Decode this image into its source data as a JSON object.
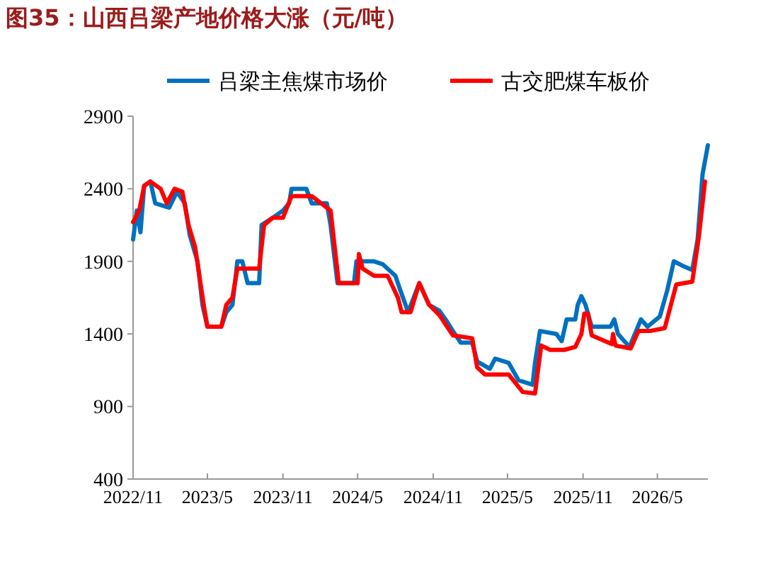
{
  "chart_data": {
    "type": "line",
    "title": "图35：山西吕梁产地价格大涨（元/吨）",
    "legend": "top",
    "grid": false,
    "xlim": [
      "2022-11-01",
      "2026-09-01"
    ],
    "xticks": [
      {
        "value": "2022-11-01",
        "label": "2022/11"
      },
      {
        "value": "2023-05-01",
        "label": "2023/5"
      },
      {
        "value": "2023-11-01",
        "label": "2023/11"
      },
      {
        "value": "2024-05-01",
        "label": "2024/5"
      },
      {
        "value": "2024-11-01",
        "label": "2024/11"
      },
      {
        "value": "2025-05-01",
        "label": "2025/5"
      },
      {
        "value": "2025-11-01",
        "label": "2025/11"
      },
      {
        "value": "2026-05-01",
        "label": "2026/5"
      }
    ],
    "ylim": [
      400,
      2900
    ],
    "yticks": [
      400,
      900,
      1400,
      1900,
      2400,
      2900
    ],
    "series": [
      {
        "name": "吕梁主焦煤市场价",
        "color": "#0070c0",
        "x": [
          "2022-11-01",
          "2022-11-10",
          "2022-11-19",
          "2022-11-28",
          "2022-12-13",
          "2022-12-25",
          "2023-01-28",
          "2023-02-16",
          "2023-03-07",
          "2023-03-19",
          "2023-04-07",
          "2023-04-19",
          "2023-05-01",
          "2023-06-04",
          "2023-06-16",
          "2023-07-01",
          "2023-07-13",
          "2023-07-25",
          "2023-08-07",
          "2023-09-04",
          "2023-09-10",
          "2023-10-07",
          "2023-11-01",
          "2023-11-16",
          "2023-11-22",
          "2023-12-28",
          "2024-01-10",
          "2024-02-16",
          "2024-02-25",
          "2024-03-13",
          "2024-04-22",
          "2024-04-28",
          "2024-06-10",
          "2024-07-01",
          "2024-08-01",
          "2024-08-13",
          "2024-09-01",
          "2024-09-28",
          "2024-10-22",
          "2024-11-16",
          "2024-12-01",
          "2024-12-19",
          "2025-01-07",
          "2025-02-04",
          "2025-02-16",
          "2025-03-19",
          "2025-04-01",
          "2025-05-04",
          "2025-05-28",
          "2025-07-01",
          "2025-07-07",
          "2025-07-19",
          "2025-08-28",
          "2025-09-10",
          "2025-09-22",
          "2025-10-13",
          "2025-10-19",
          "2025-10-28",
          "2025-11-07",
          "2025-11-22",
          "2026-01-07",
          "2026-01-16",
          "2026-01-25",
          "2026-02-22",
          "2026-03-22",
          "2026-04-07",
          "2026-05-07",
          "2026-05-25",
          "2026-06-10",
          "2026-07-01",
          "2026-07-25",
          "2026-08-07",
          "2026-08-19",
          "2026-09-01"
        ],
        "values": [
          2050,
          2250,
          2100,
          2420,
          2450,
          2300,
          2270,
          2380,
          2300,
          2080,
          1900,
          1600,
          1450,
          1450,
          1550,
          1600,
          1900,
          1900,
          1750,
          1750,
          2150,
          2200,
          2250,
          2300,
          2400,
          2400,
          2300,
          2300,
          2150,
          1750,
          1750,
          1900,
          1900,
          1880,
          1800,
          1700,
          1550,
          1750,
          1600,
          1560,
          1500,
          1420,
          1340,
          1340,
          1210,
          1160,
          1230,
          1200,
          1080,
          1050,
          1200,
          1420,
          1400,
          1350,
          1500,
          1500,
          1600,
          1660,
          1600,
          1450,
          1450,
          1500,
          1400,
          1310,
          1500,
          1450,
          1520,
          1700,
          1900,
          1870,
          1840,
          2050,
          2500,
          2700
        ]
      },
      {
        "name": "古交肥煤车板价",
        "color": "#ff0000",
        "x": [
          "2022-11-01",
          "2022-11-16",
          "2022-11-28",
          "2022-12-13",
          "2023-01-07",
          "2023-01-22",
          "2023-02-10",
          "2023-03-01",
          "2023-03-16",
          "2023-04-01",
          "2023-04-22",
          "2023-05-01",
          "2023-06-04",
          "2023-06-16",
          "2023-07-01",
          "2023-07-13",
          "2023-09-04",
          "2023-09-16",
          "2023-10-07",
          "2023-11-01",
          "2023-11-22",
          "2024-01-10",
          "2024-02-25",
          "2024-03-16",
          "2024-05-01",
          "2024-05-04",
          "2024-05-13",
          "2024-06-10",
          "2024-07-13",
          "2024-08-07",
          "2024-08-16",
          "2024-09-07",
          "2024-09-28",
          "2024-10-22",
          "2024-11-16",
          "2024-12-19",
          "2025-02-04",
          "2025-02-16",
          "2025-03-07",
          "2025-05-04",
          "2025-06-07",
          "2025-07-07",
          "2025-07-22",
          "2025-08-13",
          "2025-09-16",
          "2025-10-13",
          "2025-10-28",
          "2025-11-04",
          "2025-11-13",
          "2025-11-22",
          "2026-01-10",
          "2026-01-13",
          "2026-01-19",
          "2026-02-25",
          "2026-03-16",
          "2026-04-13",
          "2026-05-19",
          "2026-06-16",
          "2026-07-25",
          "2026-08-10",
          "2026-08-25"
        ],
        "values": [
          2170,
          2250,
          2420,
          2450,
          2400,
          2300,
          2400,
          2380,
          2150,
          2000,
          1600,
          1450,
          1450,
          1600,
          1650,
          1850,
          1850,
          2150,
          2200,
          2200,
          2350,
          2350,
          2250,
          1750,
          1750,
          1950,
          1850,
          1800,
          1800,
          1650,
          1550,
          1550,
          1750,
          1600,
          1530,
          1390,
          1370,
          1170,
          1120,
          1120,
          1000,
          990,
          1320,
          1290,
          1290,
          1310,
          1400,
          1540,
          1540,
          1390,
          1330,
          1400,
          1320,
          1300,
          1420,
          1420,
          1440,
          1740,
          1760,
          2070,
          2450
        ]
      }
    ]
  }
}
